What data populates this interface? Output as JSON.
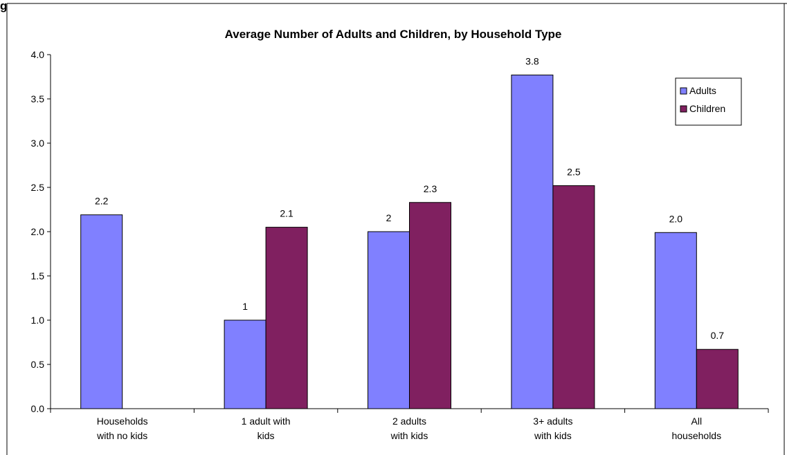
{
  "figure_label": "g",
  "chart_data": {
    "type": "bar",
    "title": "Average Number of Adults and Children, by Household Type",
    "xlabel": "",
    "ylabel": "",
    "ylim": [
      0,
      4
    ],
    "yticks": [
      "0.0",
      "0.5",
      "1.0",
      "1.5",
      "2.0",
      "2.5",
      "3.0",
      "3.5",
      "4.0"
    ],
    "categories": [
      [
        "Households",
        "with no kids"
      ],
      [
        "1 adult with",
        "kids"
      ],
      [
        "2 adults",
        "with kids"
      ],
      [
        "3+ adults",
        "with kids"
      ],
      [
        "All",
        "households"
      ]
    ],
    "series": [
      {
        "name": "Adults",
        "color": "#8080ff",
        "values": [
          2.19,
          1.0,
          2.0,
          3.77,
          1.99
        ],
        "labels": [
          "2.2",
          "1",
          "2",
          "3.8",
          "2.0"
        ]
      },
      {
        "name": "Children",
        "color": "#802060",
        "values": [
          null,
          2.05,
          2.33,
          2.52,
          0.67
        ],
        "labels": [
          "",
          "2.1",
          "2.3",
          "2.5",
          "0.7"
        ]
      }
    ],
    "grid": false,
    "legend": "top-right"
  }
}
